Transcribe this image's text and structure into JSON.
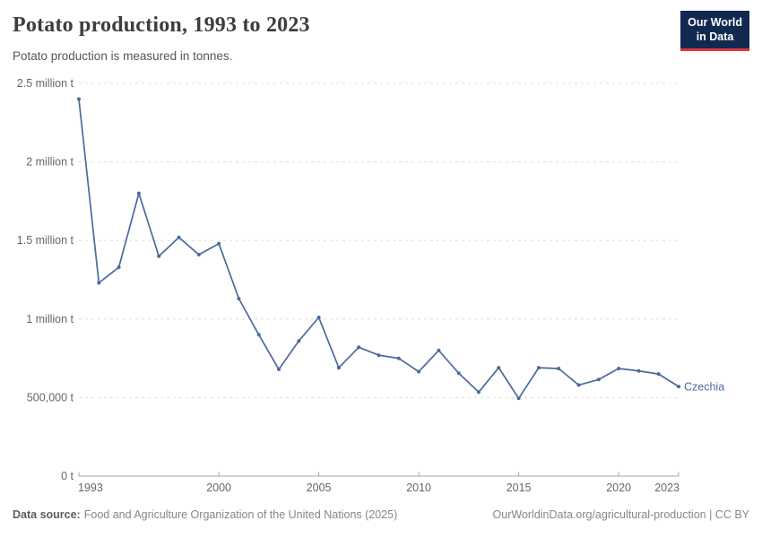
{
  "header": {
    "title": "Potato production, 1993 to 2023",
    "subtitle": "Potato production is measured in tonnes.",
    "logo": {
      "line1": "Our World",
      "line2": "in Data",
      "bg_color": "#12294f",
      "accent_color": "#e0373e"
    }
  },
  "chart_data": {
    "type": "line",
    "title": "Potato production, 1993 to 2023",
    "unit": "tonnes",
    "x": [
      1993,
      1994,
      1995,
      1996,
      1997,
      1998,
      1999,
      2000,
      2001,
      2002,
      2003,
      2004,
      2005,
      2006,
      2007,
      2008,
      2009,
      2010,
      2011,
      2012,
      2013,
      2014,
      2015,
      2016,
      2017,
      2018,
      2019,
      2020,
      2021,
      2022,
      2023
    ],
    "series": [
      {
        "name": "Czechia",
        "color": "#4c6a9c",
        "values": [
          2400000,
          1230000,
          1330000,
          1800000,
          1400000,
          1520000,
          1410000,
          1480000,
          1130000,
          900000,
          680000,
          860000,
          1010000,
          690000,
          820000,
          770000,
          750000,
          665000,
          800000,
          655000,
          535000,
          690000,
          495000,
          690000,
          685000,
          580000,
          615000,
          685000,
          670000,
          650000,
          570000
        ]
      }
    ],
    "xlim": [
      1993,
      2023
    ],
    "ylim": [
      0,
      2500000
    ],
    "xticks": [
      1993,
      2000,
      2005,
      2010,
      2015,
      2020,
      2023
    ],
    "yticks": [
      {
        "value": 0,
        "label": "0 t"
      },
      {
        "value": 500000,
        "label": "500,000 t"
      },
      {
        "value": 1000000,
        "label": "1 million t"
      },
      {
        "value": 1500000,
        "label": "1.5 million t"
      },
      {
        "value": 2000000,
        "label": "2 million t"
      },
      {
        "value": 2500000,
        "label": "2.5 million t"
      }
    ],
    "grid": "horizontal-dashed",
    "legend_position": "end-of-line",
    "grid_color": "#dedede",
    "axis_color": "#a3a3a3",
    "tick_label_color": "#666666"
  },
  "footer": {
    "datasource_label": "Data source:",
    "datasource_text": "Food and Agriculture Organization of the United Nations (2025)",
    "credit": "OurWorldinData.org/agricultural-production | CC BY"
  }
}
